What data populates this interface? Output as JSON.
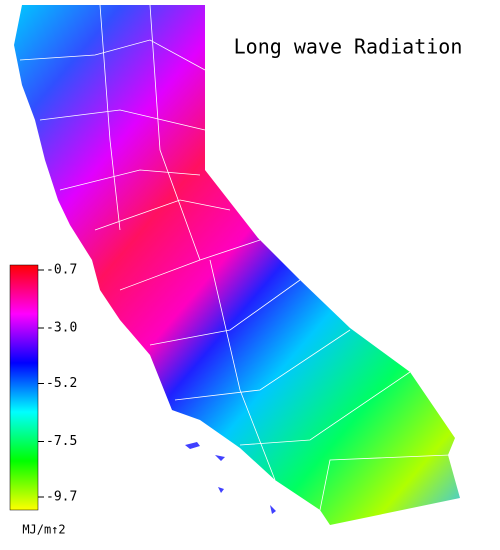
{
  "title": "Long wave Radiation",
  "colorbar": {
    "unit": "MJ/m↑2",
    "clim": [
      -9.7,
      -0.7
    ],
    "colors": [
      "#ffff00",
      "#00ff00",
      "#00ffff",
      "#0000ff",
      "#ff00ff",
      "#ff0000"
    ],
    "ticks": [
      -0.7,
      {
        "value": -3,
        "label": "-3.0"
      },
      -5.2,
      -7.5,
      -9.7
    ]
  }
}
